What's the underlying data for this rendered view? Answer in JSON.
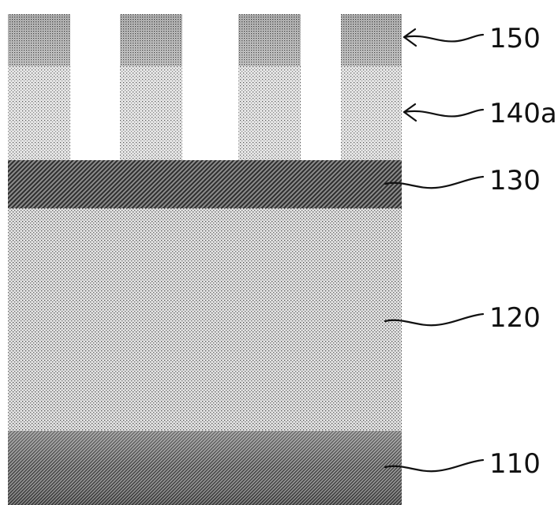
{
  "layers": [
    {
      "ref": "150",
      "name": "patterned top layer"
    },
    {
      "ref": "140a",
      "name": "patterned layer"
    },
    {
      "ref": "130",
      "name": "hatched layer"
    },
    {
      "ref": "120",
      "name": "thick dotted layer"
    },
    {
      "ref": "110",
      "name": "bottom layer"
    }
  ],
  "labels": {
    "l150": "150",
    "l140a": "140a",
    "l130": "130",
    "l120": "120",
    "l110": "110"
  }
}
